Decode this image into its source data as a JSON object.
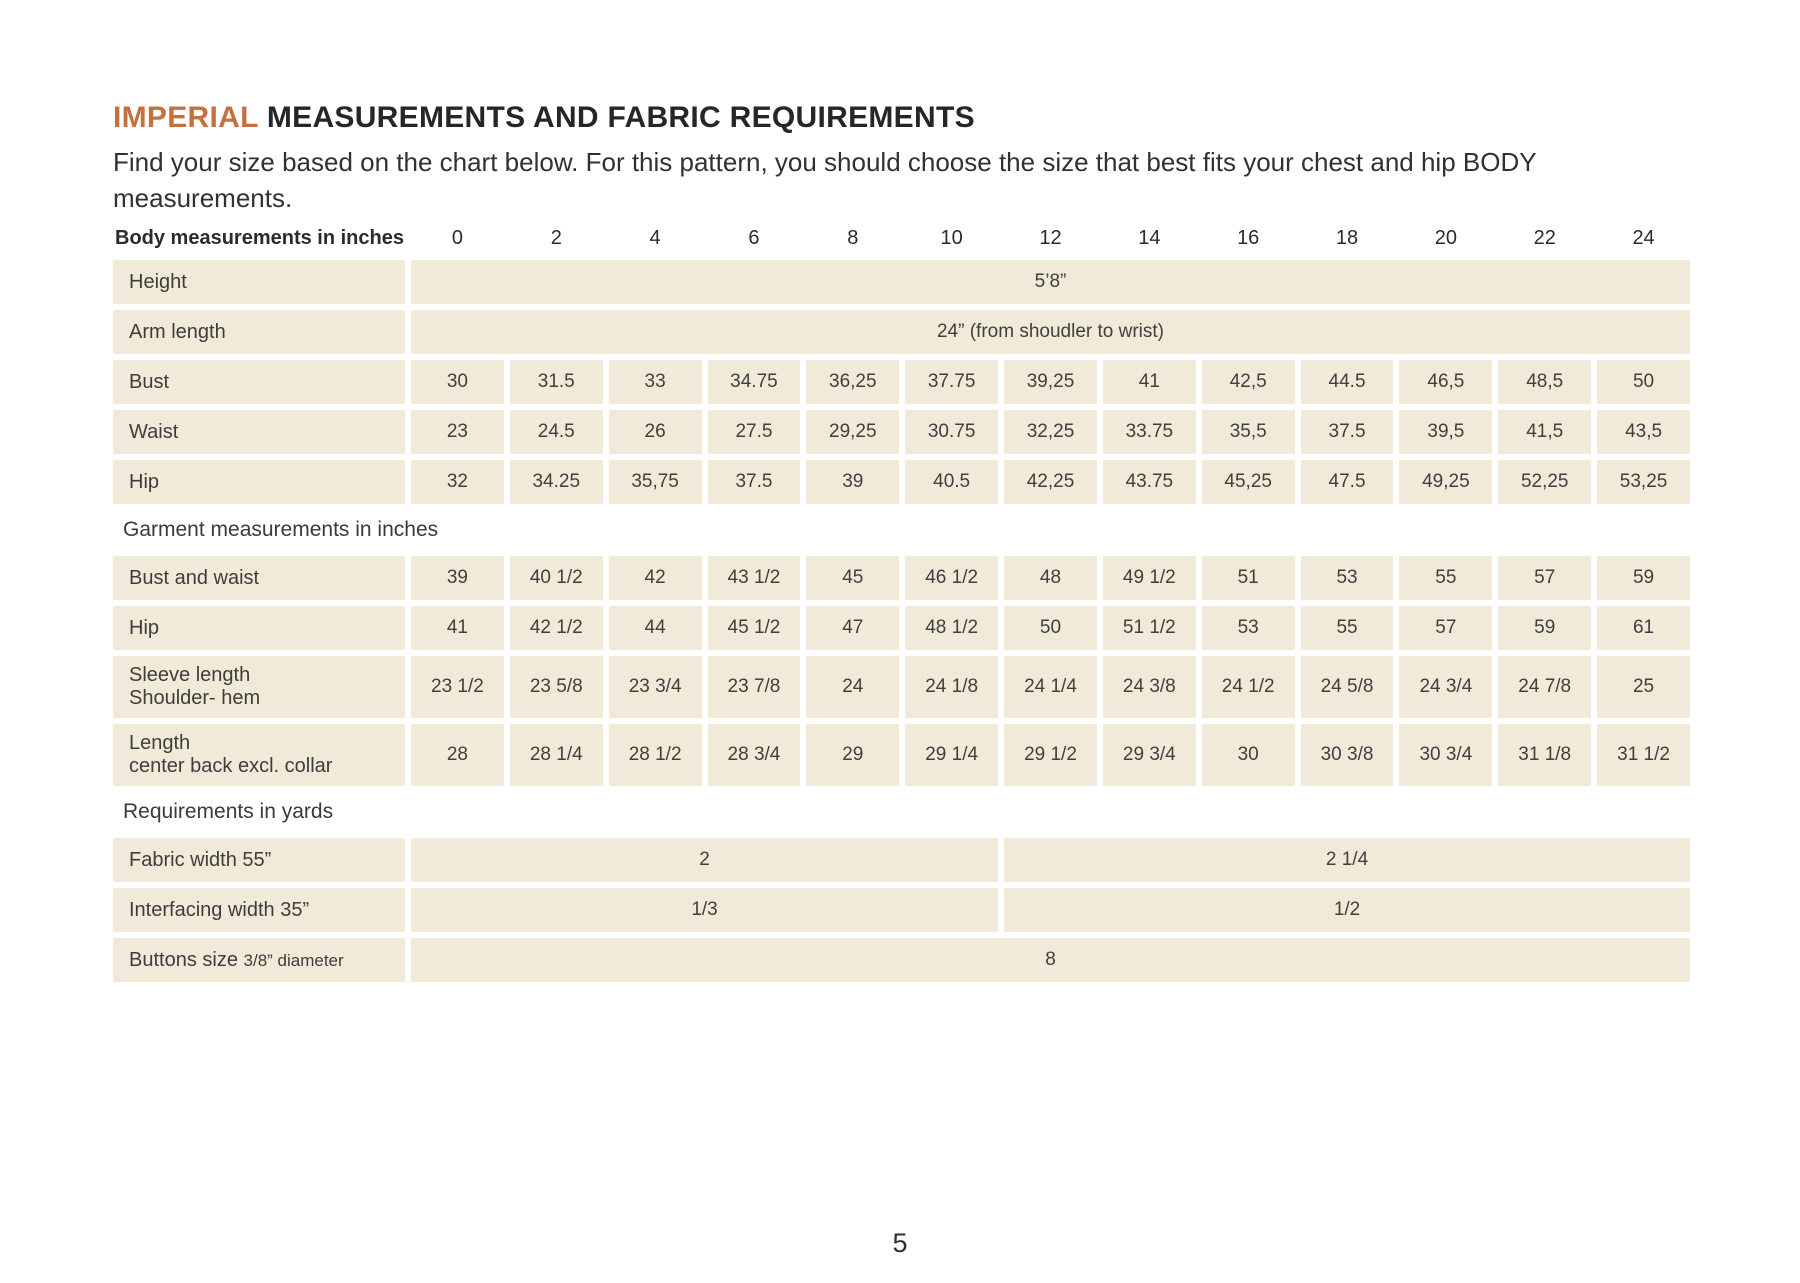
{
  "page": {
    "title_accent": "IMPERIAL",
    "title_rest": " MEASUREMENTS AND FABRIC REQUIREMENTS",
    "subtitle_lines": [
      "Find your size based on the chart below. For this pattern, you should choose the size that best fits your chest and hip BODY",
      "measurements."
    ],
    "accent_color": "#c5703e",
    "cell_background_color": "#f2ead8",
    "page_number": "5"
  },
  "table": {
    "header_label": "Body measurements in inches",
    "sizes": [
      "0",
      "2",
      "4",
      "6",
      "8",
      "10",
      "12",
      "14",
      "16",
      "18",
      "20",
      "22",
      "24"
    ],
    "span_rows": [
      {
        "label": "Height",
        "value": "5’8”"
      },
      {
        "label": "Arm length",
        "value": "24” (from shoudler to wrist)"
      }
    ],
    "body_rows": [
      {
        "label": "Bust",
        "values": [
          "30",
          "31.5",
          "33",
          "34.75",
          "36,25",
          "37.75",
          "39,25",
          "41",
          "42,5",
          "44.5",
          "46,5",
          "48,5",
          "50"
        ]
      },
      {
        "label": "Waist",
        "values": [
          "23",
          "24.5",
          "26",
          "27.5",
          "29,25",
          "30.75",
          "32,25",
          "33.75",
          "35,5",
          "37.5",
          "39,5",
          "41,5",
          "43,5"
        ]
      },
      {
        "label": "Hip",
        "values": [
          "32",
          "34.25",
          "35,75",
          "37.5",
          "39",
          "40.5",
          "42,25",
          "43.75",
          "45,25",
          "47.5",
          "49,25",
          "52,25",
          "53,25"
        ]
      }
    ],
    "garment_section_label": "Garment measurements in inches",
    "garment_rows": [
      {
        "label": "Bust and waist",
        "label2": "",
        "values": [
          "39",
          "40 1/2",
          "42",
          "43 1/2",
          "45",
          "46 1/2",
          "48",
          "49 1/2",
          "51",
          "53",
          "55",
          "57",
          "59"
        ]
      },
      {
        "label": "Hip",
        "label2": "",
        "values": [
          "41",
          "42 1/2",
          "44",
          "45 1/2",
          "47",
          "48 1/2",
          "50",
          "51 1/2",
          "53",
          "55",
          "57",
          "59",
          "61"
        ]
      },
      {
        "label": "Sleeve length",
        "label2": "Shoulder- hem",
        "values": [
          "23 1/2",
          "23 5/8",
          "23 3/4",
          "23 7/8",
          "24",
          "24 1/8",
          "24 1/4",
          "24 3/8",
          "24 1/2",
          "24 5/8",
          "24 3/4",
          "24 7/8",
          "25"
        ]
      },
      {
        "label": "Length",
        "label2": "center back excl. collar",
        "values": [
          "28",
          "28 1/4",
          "28 1/2",
          "28 3/4",
          "29",
          "29 1/4",
          "29 1/2",
          "29 3/4",
          "30",
          "30 3/8",
          "30 3/4",
          "31 1/8",
          "31 1/2"
        ]
      }
    ],
    "requirements_section_label": "Requirements in yards",
    "requirement_rows": [
      {
        "label": "Fabric width 55”",
        "left_value": "2",
        "right_value": "2 1/4"
      },
      {
        "label": "Interfacing width 35”",
        "left_value": "1/3",
        "right_value": "1/2"
      }
    ],
    "buttons_row": {
      "label_main": "Buttons size",
      "label_small": "3/8” diameter",
      "value": "8"
    }
  }
}
